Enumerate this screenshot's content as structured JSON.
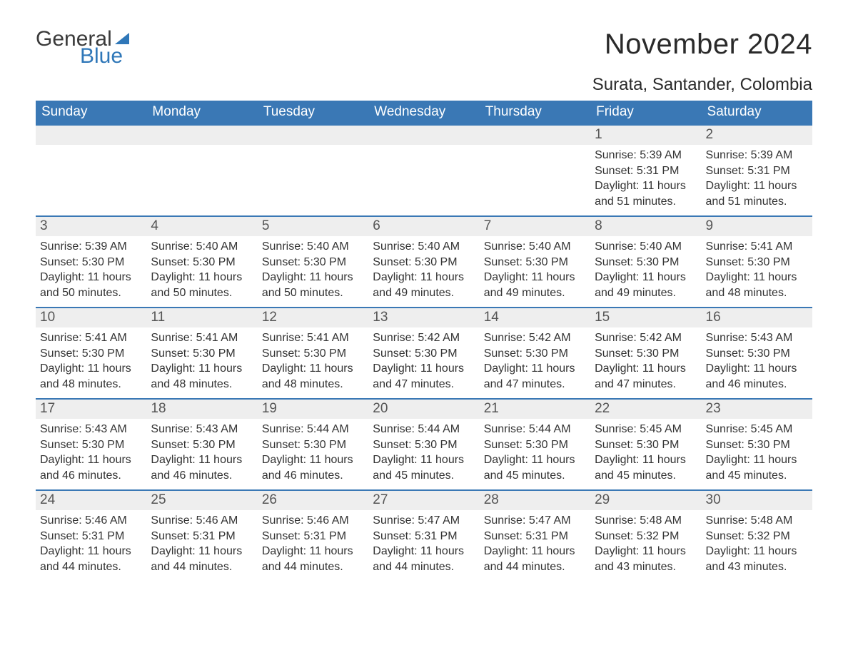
{
  "brand": {
    "word1": "General",
    "word2": "Blue",
    "accent_color": "#2f77b8",
    "text_color": "#3a3a3a"
  },
  "title": "November 2024",
  "location": "Surata, Santander, Colombia",
  "colors": {
    "header_bg": "#3a78b5",
    "header_text": "#ffffff",
    "daynum_bg": "#eeeeee",
    "daynum_text": "#555555",
    "body_text": "#333333",
    "row_border": "#3a78b5",
    "page_bg": "#ffffff"
  },
  "typography": {
    "month_title_fontsize": 40,
    "location_fontsize": 24,
    "weekday_fontsize": 19,
    "daynum_fontsize": 19,
    "detail_fontsize": 16
  },
  "calendar": {
    "type": "table",
    "weekdays": [
      "Sunday",
      "Monday",
      "Tuesday",
      "Wednesday",
      "Thursday",
      "Friday",
      "Saturday"
    ],
    "labels": {
      "sunrise": "Sunrise: ",
      "sunset": "Sunset: ",
      "daylight": "Daylight: "
    },
    "weeks": [
      [
        null,
        null,
        null,
        null,
        null,
        {
          "day": 1,
          "sunrise": "5:39 AM",
          "sunset": "5:31 PM",
          "daylight": "11 hours and 51 minutes."
        },
        {
          "day": 2,
          "sunrise": "5:39 AM",
          "sunset": "5:31 PM",
          "daylight": "11 hours and 51 minutes."
        }
      ],
      [
        {
          "day": 3,
          "sunrise": "5:39 AM",
          "sunset": "5:30 PM",
          "daylight": "11 hours and 50 minutes."
        },
        {
          "day": 4,
          "sunrise": "5:40 AM",
          "sunset": "5:30 PM",
          "daylight": "11 hours and 50 minutes."
        },
        {
          "day": 5,
          "sunrise": "5:40 AM",
          "sunset": "5:30 PM",
          "daylight": "11 hours and 50 minutes."
        },
        {
          "day": 6,
          "sunrise": "5:40 AM",
          "sunset": "5:30 PM",
          "daylight": "11 hours and 49 minutes."
        },
        {
          "day": 7,
          "sunrise": "5:40 AM",
          "sunset": "5:30 PM",
          "daylight": "11 hours and 49 minutes."
        },
        {
          "day": 8,
          "sunrise": "5:40 AM",
          "sunset": "5:30 PM",
          "daylight": "11 hours and 49 minutes."
        },
        {
          "day": 9,
          "sunrise": "5:41 AM",
          "sunset": "5:30 PM",
          "daylight": "11 hours and 48 minutes."
        }
      ],
      [
        {
          "day": 10,
          "sunrise": "5:41 AM",
          "sunset": "5:30 PM",
          "daylight": "11 hours and 48 minutes."
        },
        {
          "day": 11,
          "sunrise": "5:41 AM",
          "sunset": "5:30 PM",
          "daylight": "11 hours and 48 minutes."
        },
        {
          "day": 12,
          "sunrise": "5:41 AM",
          "sunset": "5:30 PM",
          "daylight": "11 hours and 48 minutes."
        },
        {
          "day": 13,
          "sunrise": "5:42 AM",
          "sunset": "5:30 PM",
          "daylight": "11 hours and 47 minutes."
        },
        {
          "day": 14,
          "sunrise": "5:42 AM",
          "sunset": "5:30 PM",
          "daylight": "11 hours and 47 minutes."
        },
        {
          "day": 15,
          "sunrise": "5:42 AM",
          "sunset": "5:30 PM",
          "daylight": "11 hours and 47 minutes."
        },
        {
          "day": 16,
          "sunrise": "5:43 AM",
          "sunset": "5:30 PM",
          "daylight": "11 hours and 46 minutes."
        }
      ],
      [
        {
          "day": 17,
          "sunrise": "5:43 AM",
          "sunset": "5:30 PM",
          "daylight": "11 hours and 46 minutes."
        },
        {
          "day": 18,
          "sunrise": "5:43 AM",
          "sunset": "5:30 PM",
          "daylight": "11 hours and 46 minutes."
        },
        {
          "day": 19,
          "sunrise": "5:44 AM",
          "sunset": "5:30 PM",
          "daylight": "11 hours and 46 minutes."
        },
        {
          "day": 20,
          "sunrise": "5:44 AM",
          "sunset": "5:30 PM",
          "daylight": "11 hours and 45 minutes."
        },
        {
          "day": 21,
          "sunrise": "5:44 AM",
          "sunset": "5:30 PM",
          "daylight": "11 hours and 45 minutes."
        },
        {
          "day": 22,
          "sunrise": "5:45 AM",
          "sunset": "5:30 PM",
          "daylight": "11 hours and 45 minutes."
        },
        {
          "day": 23,
          "sunrise": "5:45 AM",
          "sunset": "5:30 PM",
          "daylight": "11 hours and 45 minutes."
        }
      ],
      [
        {
          "day": 24,
          "sunrise": "5:46 AM",
          "sunset": "5:31 PM",
          "daylight": "11 hours and 44 minutes."
        },
        {
          "day": 25,
          "sunrise": "5:46 AM",
          "sunset": "5:31 PM",
          "daylight": "11 hours and 44 minutes."
        },
        {
          "day": 26,
          "sunrise": "5:46 AM",
          "sunset": "5:31 PM",
          "daylight": "11 hours and 44 minutes."
        },
        {
          "day": 27,
          "sunrise": "5:47 AM",
          "sunset": "5:31 PM",
          "daylight": "11 hours and 44 minutes."
        },
        {
          "day": 28,
          "sunrise": "5:47 AM",
          "sunset": "5:31 PM",
          "daylight": "11 hours and 44 minutes."
        },
        {
          "day": 29,
          "sunrise": "5:48 AM",
          "sunset": "5:32 PM",
          "daylight": "11 hours and 43 minutes."
        },
        {
          "day": 30,
          "sunrise": "5:48 AM",
          "sunset": "5:32 PM",
          "daylight": "11 hours and 43 minutes."
        }
      ]
    ]
  }
}
